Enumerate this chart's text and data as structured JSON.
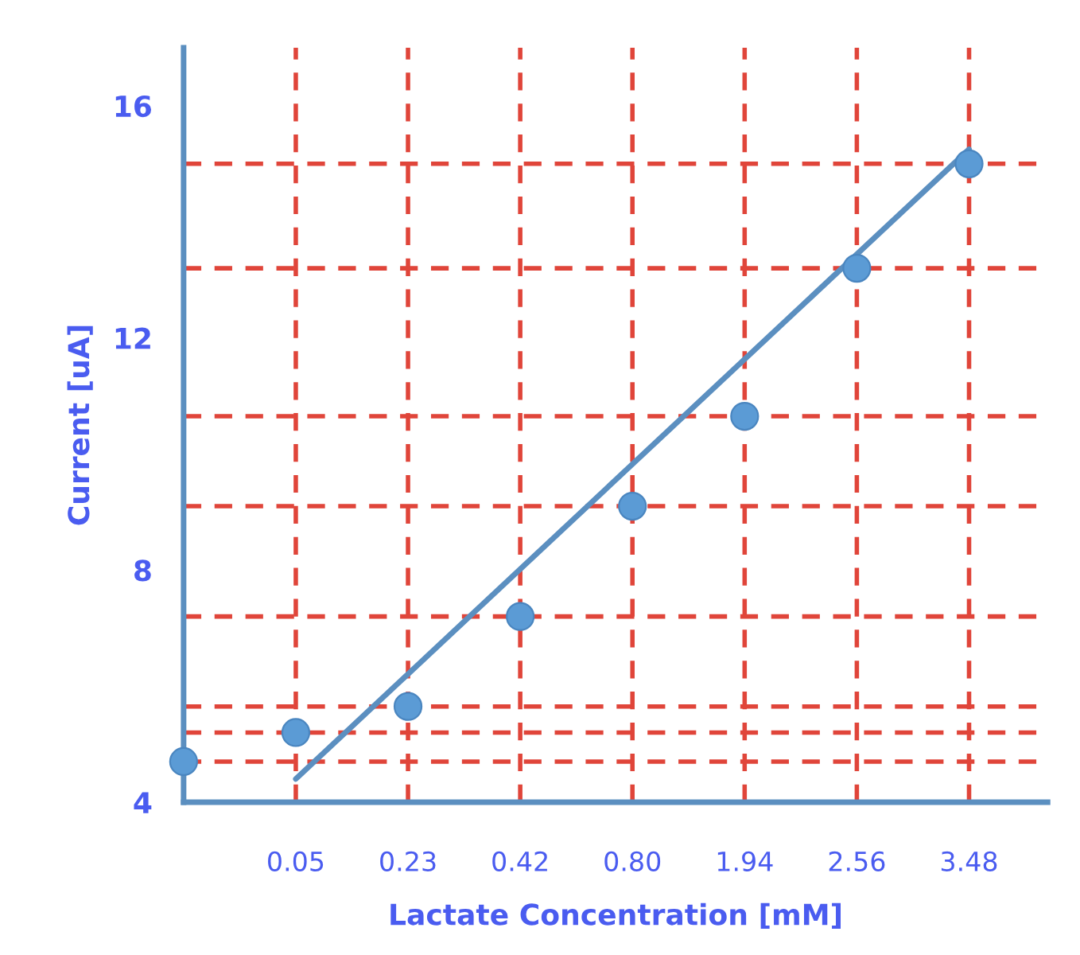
{
  "chart_data": {
    "type": "scatter",
    "xlabel": "Lactate Concentration [mM]",
    "ylabel": "Current [uA]",
    "categories": [
      null,
      "0.05",
      "0.23",
      "0.42",
      "0.80",
      "1.94",
      "2.56",
      "3.48"
    ],
    "series": [
      {
        "color": "#5b9bd5",
        "marker": "circle",
        "values": [
          4.7,
          5.2,
          5.65,
          7.2,
          9.1,
          10.65,
          13.2,
          15.0
        ]
      },
      {
        "type": "line",
        "color": "#5b8fc0",
        "x": [
          "0.05",
          "3.48"
        ],
        "values": [
          4.4,
          15.25
        ]
      }
    ],
    "ylim": [
      4,
      17
    ],
    "yticks": [
      4,
      8,
      12,
      16
    ],
    "grid": false,
    "ref_lines": [
      {
        "axis": "y",
        "value": 4.7,
        "color": "#e0453a",
        "line_style": "dashed"
      },
      {
        "axis": "y",
        "value": 5.2,
        "color": "#e0453a",
        "line_style": "dashed"
      },
      {
        "axis": "y",
        "value": 5.65,
        "color": "#e0453a",
        "line_style": "dashed"
      },
      {
        "axis": "y",
        "value": 7.2,
        "color": "#e0453a",
        "line_style": "dashed"
      },
      {
        "axis": "y",
        "value": 9.1,
        "color": "#e0453a",
        "line_style": "dashed"
      },
      {
        "axis": "y",
        "value": 10.65,
        "color": "#e0453a",
        "line_style": "dashed"
      },
      {
        "axis": "y",
        "value": 13.2,
        "color": "#e0453a",
        "line_style": "dashed"
      },
      {
        "axis": "y",
        "value": 15.0,
        "color": "#e0453a",
        "line_style": "dashed"
      },
      {
        "axis": "x",
        "value": "0.05",
        "color": "#e0453a",
        "line_style": "dashed"
      },
      {
        "axis": "x",
        "value": "0.23",
        "color": "#e0453a",
        "line_style": "dashed"
      },
      {
        "axis": "x",
        "value": "0.42",
        "color": "#e0453a",
        "line_style": "dashed"
      },
      {
        "axis": "x",
        "value": "0.80",
        "color": "#e0453a",
        "line_style": "dashed"
      },
      {
        "axis": "x",
        "value": "1.94",
        "color": "#e0453a",
        "line_style": "dashed"
      },
      {
        "axis": "x",
        "value": "2.56",
        "color": "#e0453a",
        "line_style": "dashed"
      },
      {
        "axis": "x",
        "value": "3.48",
        "color": "#e0453a",
        "line_style": "dashed"
      }
    ]
  }
}
